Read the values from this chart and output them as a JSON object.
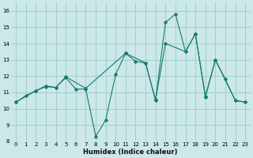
{
  "xlabel": "Humidex (Indice chaleur)",
  "bg_color": "#cce8e8",
  "grid_color": "#99cccc",
  "line_color": "#1a7a6e",
  "xlim": [
    -0.5,
    23.5
  ],
  "ylim": [
    8,
    16.5
  ],
  "xticks": [
    0,
    1,
    2,
    3,
    4,
    5,
    6,
    7,
    8,
    9,
    10,
    11,
    12,
    13,
    14,
    15,
    16,
    17,
    18,
    19,
    20,
    21,
    22,
    23
  ],
  "yticks": [
    8,
    9,
    10,
    11,
    12,
    13,
    14,
    15,
    16
  ],
  "series1": [
    [
      0,
      10.4
    ],
    [
      1,
      10.8
    ],
    [
      2,
      11.1
    ],
    [
      3,
      11.4
    ],
    [
      4,
      11.3
    ],
    [
      5,
      11.9
    ],
    [
      6,
      11.2
    ],
    [
      7,
      11.2
    ],
    [
      8,
      8.3
    ],
    [
      9,
      9.3
    ],
    [
      10,
      12.1
    ],
    [
      11,
      13.4
    ],
    [
      12,
      12.9
    ],
    [
      13,
      12.8
    ],
    [
      14,
      10.5
    ],
    [
      15,
      15.3
    ],
    [
      16,
      15.8
    ],
    [
      17,
      13.5
    ],
    [
      18,
      14.6
    ],
    [
      19,
      10.7
    ],
    [
      20,
      13.0
    ],
    [
      21,
      11.8
    ],
    [
      22,
      10.5
    ],
    [
      23,
      10.4
    ]
  ],
  "series2": [
    [
      0,
      10.4
    ],
    [
      2,
      11.1
    ],
    [
      3,
      11.35
    ],
    [
      4,
      11.3
    ],
    [
      5,
      11.95
    ],
    [
      7,
      11.25
    ],
    [
      11,
      13.4
    ],
    [
      13,
      12.8
    ],
    [
      14,
      10.55
    ],
    [
      15,
      14.0
    ],
    [
      17,
      13.5
    ],
    [
      18,
      14.6
    ],
    [
      19,
      10.75
    ],
    [
      20,
      13.0
    ],
    [
      22,
      10.5
    ],
    [
      23,
      10.4
    ]
  ]
}
